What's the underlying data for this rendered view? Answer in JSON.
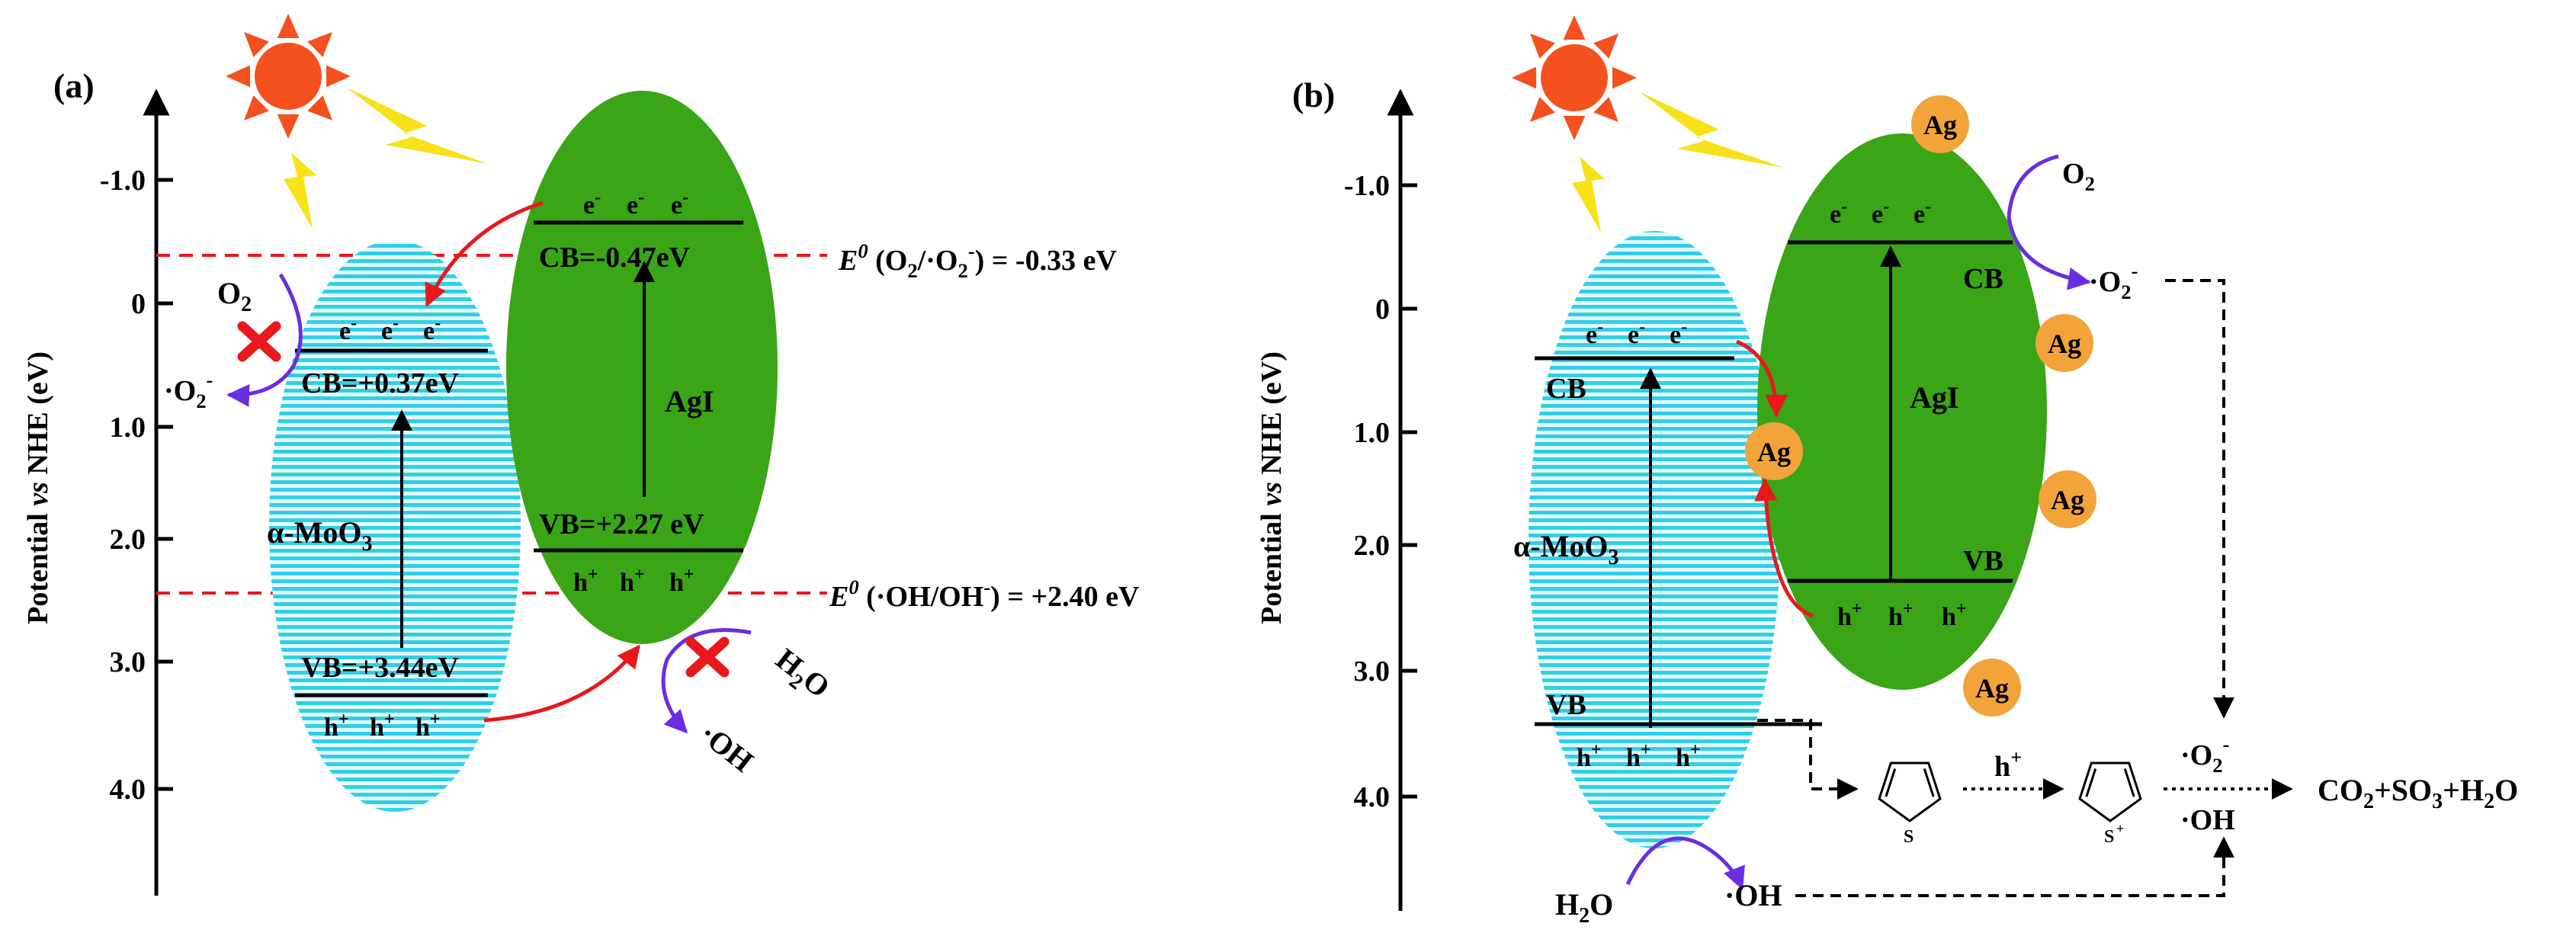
{
  "colors": {
    "ellipse_moo3": "#2fd0e6",
    "ellipse_moo3_bg": "#dff8fc",
    "ellipse_agi": "#3aa516",
    "sun": "#f4511e",
    "lightning": "#f7e21a",
    "ag_particle": "#f2a33a",
    "red_arrow": "#e8181c",
    "purple_arrow": "#6a2ee0",
    "cross": "#e8181c",
    "dash_line": "#e8181c"
  },
  "icons": {
    "sun": "sun-icon",
    "lightning": "lightning-icon",
    "cross": "cross-icon",
    "thiophene": "thiophene-icon"
  },
  "panel_a": {
    "label": "(a)",
    "ylabel_pre": "Potential ",
    "ylabel_vs": "vs",
    "ylabel_post": " NHE (eV)",
    "ticks": [
      "-1.0",
      "0",
      "1.0",
      "2.0",
      "3.0",
      "4.0"
    ],
    "moo3_label": "α-MoO",
    "moo3_sub": "3",
    "agi_label": "AgI",
    "moo3_cb": "CB=+0.37eV",
    "moo3_vb": "VB=+3.44eV",
    "agi_cb": "CB=-0.47eV",
    "agi_vb": "VB=+2.27 eV",
    "electron": "e",
    "hole": "h",
    "o2_left": "O",
    "o2_left_sub": "2",
    "o2_rad": "·O",
    "o2_rad_sub": "2",
    "h2o": "H",
    "h2o_sub": "2",
    "h2o_post": "O",
    "oh_rad": "·OH",
    "eq1_E": "E",
    "eq1_sup": "0",
    "eq1_text": " (O",
    "eq1_mid": "/·O",
    "eq1_end": ") = -0.33 eV",
    "eq2_E": "E",
    "eq2_sup": "0",
    "eq2_text": " (·OH/OH",
    "eq2_end": ") = +2.40 eV"
  },
  "panel_b": {
    "label": "(b)",
    "ylabel_pre": "Potential ",
    "ylabel_vs": "vs",
    "ylabel_post": " NHE (eV)",
    "ticks": [
      "-1.0",
      "0",
      "1.0",
      "2.0",
      "3.0",
      "4.0"
    ],
    "moo3_label": "α-MoO",
    "moo3_sub": "3",
    "agi_label": "AgI",
    "moo3_cb": "CB",
    "moo3_vb": "VB",
    "agi_cb": "CB",
    "agi_vb": "VB",
    "electron": "e",
    "hole": "h",
    "ag": "Ag",
    "o2": "O",
    "o2_sub": "2",
    "o2_rad": "·O",
    "o2_rad_sub": "2",
    "h2o": "H",
    "h2o_sub": "2",
    "h2o_post": "O",
    "oh_rad": "·OH",
    "hplus": "h",
    "mid_o2": "·O",
    "mid_o2_sub": "2",
    "mid_oh": "·OH",
    "thiophene_s": "S",
    "thiophene_s_plus": "S",
    "products": "CO",
    "products_sub1": "2",
    "products_mid": "+SO",
    "products_sub2": "3",
    "products_end": "+H",
    "products_sub3": "2",
    "products_tail": "O"
  }
}
